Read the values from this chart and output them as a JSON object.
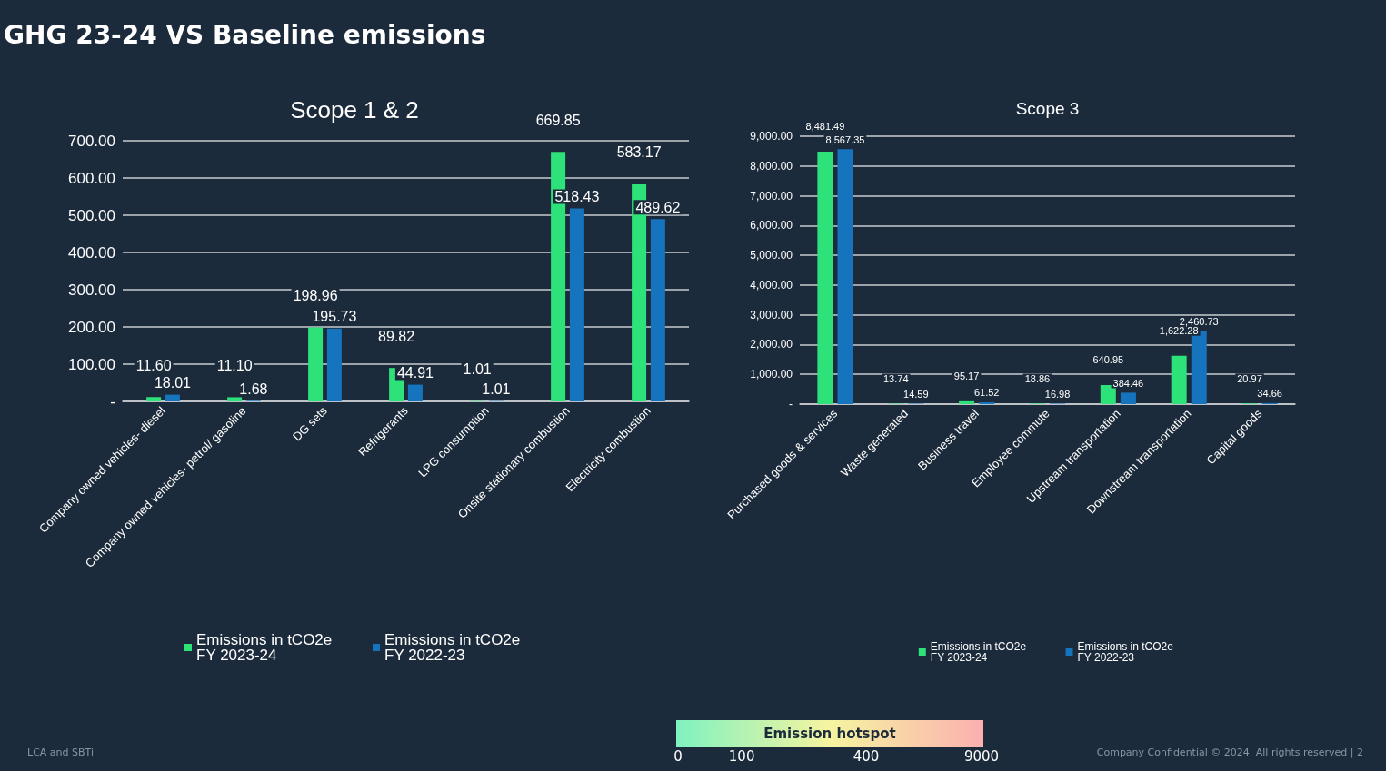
{
  "chart_data": [
    {
      "type": "bar",
      "title": "Scope 1 & 2",
      "categories": [
        "Company owned vehicles- diesel",
        "Company owned vehicles- petrol/ gasoline",
        "DG sets",
        "Refrigerants",
        "LPG consumption",
        "Onsite stationary combustion",
        "Electricity combustion"
      ],
      "series": [
        {
          "name": "Emissions in tCO2e FY 2023-24",
          "color": "#2ee27a",
          "values": [
            11.6,
            11.1,
            198.96,
            89.82,
            1.01,
            669.85,
            583.17
          ],
          "value_labels": [
            "11.60",
            "11.10",
            "198.96",
            "89.82",
            "1.01",
            "669.85",
            "583.17"
          ]
        },
        {
          "name": "Emissions in tCO2e FY 2022-23",
          "color": "#1673bd",
          "values": [
            18.01,
            1.68,
            195.73,
            44.91,
            1.01,
            518.43,
            489.62
          ],
          "value_labels": [
            "18.01",
            "1.68",
            "195.73",
            "44.91",
            "1.01",
            "518.43",
            "489.62"
          ]
        }
      ],
      "ylim": [
        0,
        700
      ],
      "yticks": [
        {
          "value": 0,
          "label": "-"
        },
        {
          "value": 100,
          "label": "100.00"
        },
        {
          "value": 200,
          "label": "200.00"
        },
        {
          "value": 300,
          "label": "300.00"
        },
        {
          "value": 400,
          "label": "400.00"
        },
        {
          "value": 500,
          "label": "500.00"
        },
        {
          "value": 600,
          "label": "600.00"
        },
        {
          "value": 700,
          "label": "700.00"
        }
      ],
      "grid": "y",
      "legend": "bottom"
    },
    {
      "type": "bar",
      "title": "Scope 3",
      "categories": [
        "Purchased goods & services",
        "Waste generated",
        "Business travel",
        "Employee commute",
        "Upstream transportation",
        "Downstream transportation",
        "Capital goods"
      ],
      "series": [
        {
          "name": "Emissions in tCO2e FY 2023-24",
          "color": "#2ee27a",
          "values": [
            8481.49,
            13.74,
            95.17,
            18.86,
            640.95,
            1622.28,
            20.97
          ],
          "value_labels": [
            "8,481.49",
            "13.74",
            "95.17",
            "18.86",
            "640.95",
            "1,622.28",
            "20.97"
          ]
        },
        {
          "name": "Emissions in tCO2e FY 2022-23",
          "color": "#1673bd",
          "values": [
            8567.35,
            14.59,
            61.52,
            16.98,
            384.46,
            2460.73,
            34.66
          ],
          "value_labels": [
            "8,567.35",
            "14.59",
            "61.52",
            "16.98",
            "384.46",
            "2,460.73",
            "34.66"
          ]
        }
      ],
      "ylim": [
        0,
        9000
      ],
      "yticks": [
        {
          "value": 0,
          "label": "-"
        },
        {
          "value": 1000,
          "label": "1,000.00"
        },
        {
          "value": 2000,
          "label": "2,000.00"
        },
        {
          "value": 3000,
          "label": "3,000.00"
        },
        {
          "value": 4000,
          "label": "4,000.00"
        },
        {
          "value": 5000,
          "label": "5,000.00"
        },
        {
          "value": 6000,
          "label": "6,000.00"
        },
        {
          "value": 7000,
          "label": "7,000.00"
        },
        {
          "value": 8000,
          "label": "8,000.00"
        },
        {
          "value": 9000,
          "label": "9,000.00"
        }
      ],
      "grid": "y",
      "legend": "bottom"
    },
    {
      "type": "other",
      "title": "GHG 23-24 VS Baseline emissions",
      "clabel": "Emission hotspot",
      "annotations": [
        "0",
        "100",
        "400",
        "9000",
        "LCA and SBTi",
        "Company Confidential © 2024. All rights reserved | 2"
      ]
    }
  ]
}
